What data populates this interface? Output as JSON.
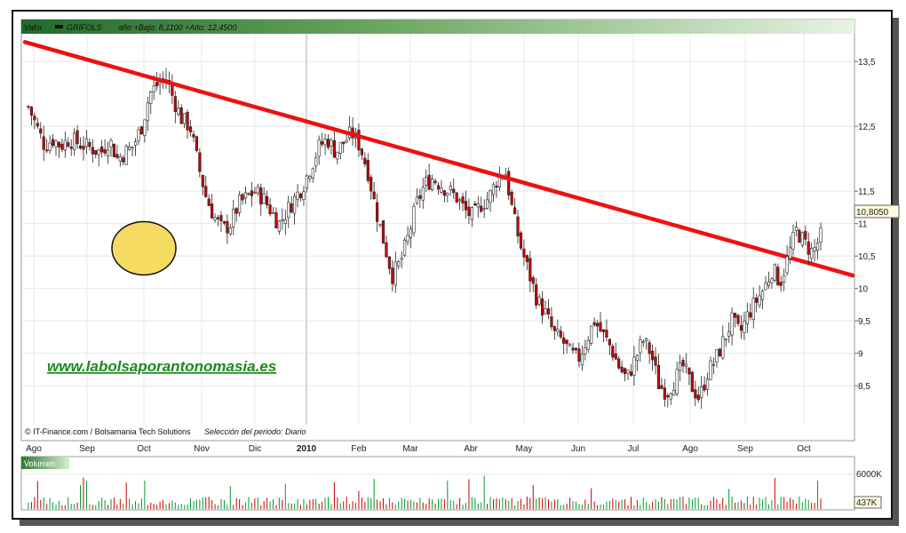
{
  "header": {
    "valor_label": "Valor",
    "ticker": "GRIFOLS",
    "range_text": "año +Bajo: 8,1100 +Alto: 12,4500"
  },
  "footer": {
    "credits": "© IT-Finance.com / Bolsamania Tech Solutions",
    "period": "Selección del periodo: Diario"
  },
  "watermark": "www.labolsaporantonomasia.es",
  "volume_panel": {
    "title": "Volumen",
    "tick_labels": [
      "6000K"
    ],
    "last_label": "437K"
  },
  "colors": {
    "trendline": "#ee1111",
    "candle_up": "#009933",
    "candle_down": "#cc0000",
    "header_green": "#2e7d32",
    "highlight_circle": "#f5d547",
    "watermark": "#1a8a1a"
  },
  "chart_data": {
    "type": "candlestick",
    "y_ticks": [
      "13,5",
      "12,5",
      "11,5",
      "11",
      "10,5",
      "10",
      "9,5",
      "9",
      "8,5"
    ],
    "y_tick_values": [
      13.5,
      12.5,
      11.5,
      11.0,
      10.5,
      10.0,
      9.5,
      9.0,
      8.5
    ],
    "x_ticks": [
      "Ago",
      "Sep",
      "Oct",
      "Nov",
      "Dic",
      "2010",
      "Feb",
      "Mar",
      "Abr",
      "May",
      "Jun",
      "Jul",
      "Ago",
      "Sep",
      "Oct"
    ],
    "last_value_label": "10,8050",
    "ylim": [
      7.9,
      13.9
    ],
    "closes": [
      12.8,
      12.5,
      12.2,
      12.3,
      12.2,
      12.3,
      12.25,
      12.2,
      12.15,
      12.1,
      12.3,
      12.0,
      12.1,
      12.2,
      12.5,
      13.0,
      13.15,
      13.25,
      12.9,
      12.6,
      12.5,
      11.9,
      11.4,
      11.1,
      10.9,
      11.0,
      11.3,
      11.4,
      11.5,
      11.4,
      11.2,
      11.0,
      11.2,
      11.4,
      11.6,
      11.9,
      12.2,
      12.3,
      12.1,
      12.25,
      12.4,
      12.2,
      11.8,
      11.2,
      10.7,
      10.2,
      10.4,
      10.8,
      11.3,
      11.6,
      11.7,
      11.6,
      11.5,
      11.4,
      11.2,
      11.1,
      11.3,
      11.4,
      11.7,
      11.8,
      11.1,
      10.6,
      10.2,
      9.8,
      9.6,
      9.3,
      9.2,
      9.0,
      8.9,
      9.2,
      9.5,
      9.3,
      9.1,
      8.8,
      8.6,
      8.9,
      9.2,
      9.0,
      8.5,
      8.4,
      8.6,
      8.8,
      8.5,
      8.3,
      8.7,
      8.9,
      9.2,
      9.5,
      9.3,
      9.6,
      9.8,
      10.0,
      10.3,
      10.1,
      10.5,
      10.9,
      10.7,
      10.55,
      10.8
    ],
    "trendline": {
      "start": {
        "x": "Ago",
        "y": 13.8
      },
      "end": {
        "x": "Oct",
        "y": 10.2
      }
    },
    "highlight": {
      "x": "Oct",
      "y": 10.62
    }
  }
}
